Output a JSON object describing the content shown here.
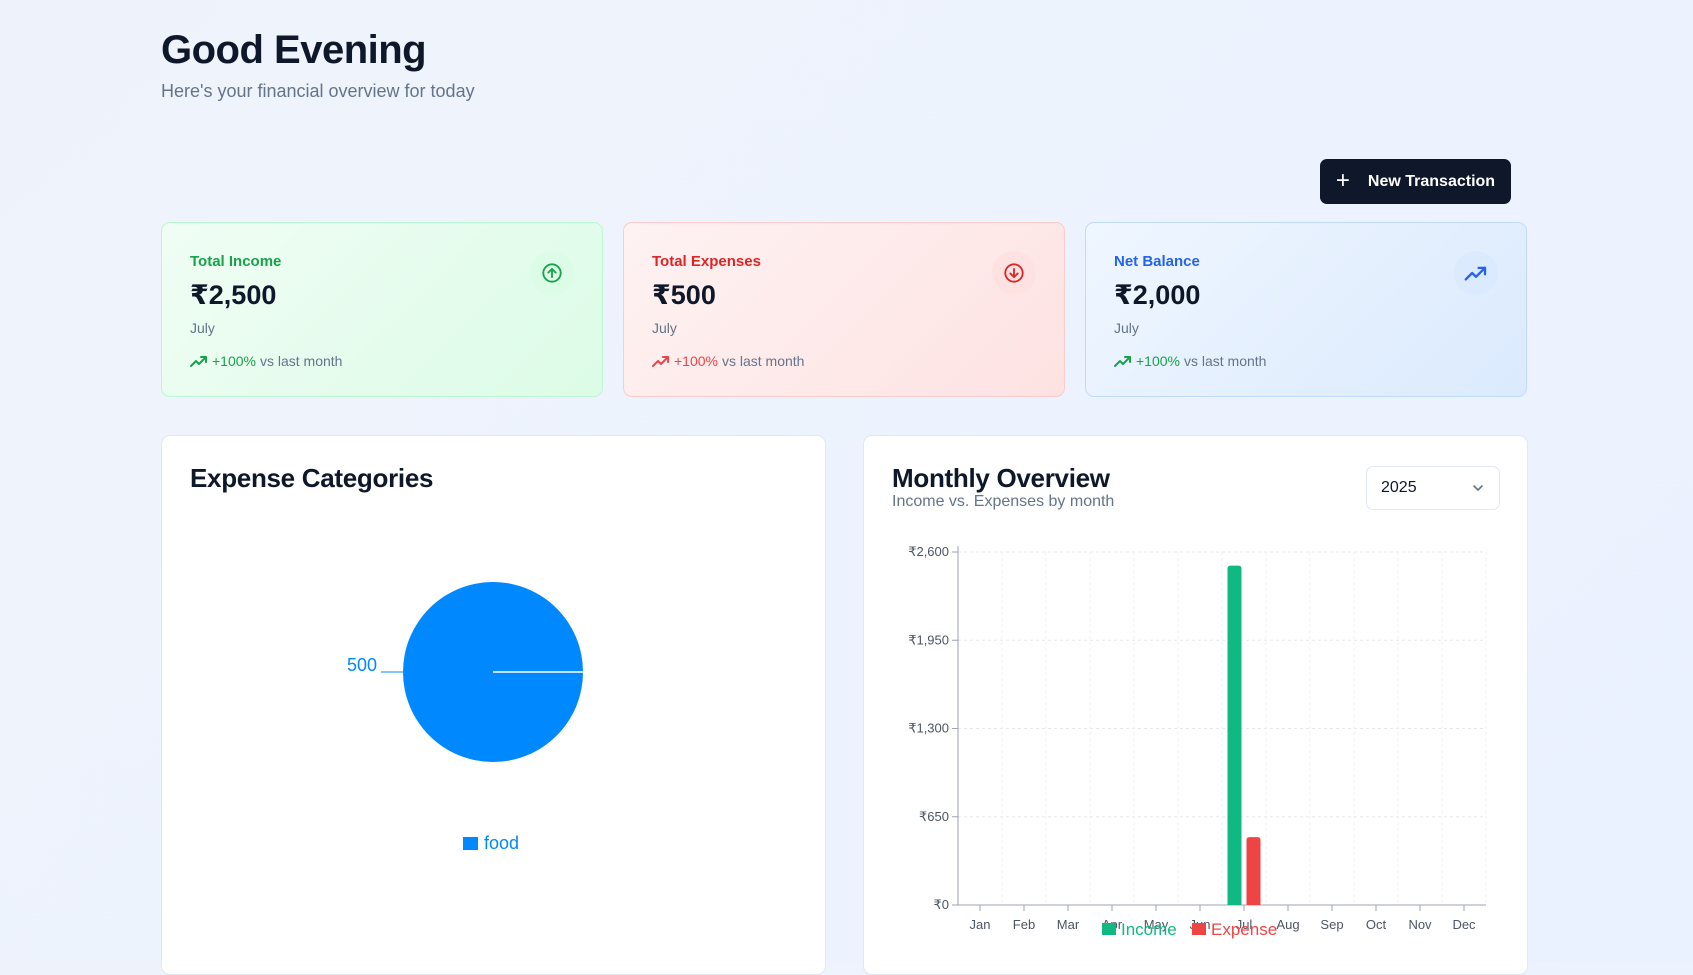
{
  "header": {
    "greeting": "Good Evening",
    "subtitle": "Here's your financial overview for today",
    "new_transaction_label": "New Transaction"
  },
  "cards": [
    {
      "label": "Total Income",
      "amount": "₹2,500",
      "period": "July",
      "trend_pct": "+100%",
      "trend_text": "vs last month",
      "icon": "arrow-up-circle-icon",
      "color": "#16a34a"
    },
    {
      "label": "Total Expenses",
      "amount": "₹500",
      "period": "July",
      "trend_pct": "+100%",
      "trend_text": "vs last month",
      "icon": "arrow-down-circle-icon",
      "color": "#dc2626"
    },
    {
      "label": "Net Balance",
      "amount": "₹2,000",
      "period": "July",
      "trend_pct": "+100%",
      "trend_text": "vs last month",
      "icon": "trending-up-icon",
      "color": "#2563eb"
    }
  ],
  "expense_categories": {
    "title": "Expense Categories"
  },
  "monthly_overview": {
    "title": "Monthly Overview",
    "subtitle": "Income vs. Expenses by month",
    "year": "2025"
  },
  "chart_data": [
    {
      "type": "pie",
      "title": "Expense Categories",
      "categories": [
        "food"
      ],
      "values": [
        500
      ],
      "colors": [
        "#0088fe"
      ],
      "legend": "bottom"
    },
    {
      "type": "bar",
      "title": "Monthly Overview",
      "categories": [
        "Jan",
        "Feb",
        "Mar",
        "Apr",
        "May",
        "Jun",
        "Jul",
        "Aug",
        "Sep",
        "Oct",
        "Nov",
        "Dec"
      ],
      "series": [
        {
          "name": "Income",
          "values": [
            0,
            0,
            0,
            0,
            0,
            0,
            2500,
            0,
            0,
            0,
            0,
            0
          ],
          "color": "#10b981"
        },
        {
          "name": "Expense",
          "values": [
            0,
            0,
            0,
            0,
            0,
            0,
            500,
            0,
            0,
            0,
            0,
            0
          ],
          "color": "#ef4444"
        }
      ],
      "yticks": [
        "₹0",
        "₹650",
        "₹1,300",
        "₹1,950",
        "₹2,600"
      ],
      "ylim": [
        0,
        2600
      ],
      "grid": true,
      "legend": "bottom"
    }
  ]
}
